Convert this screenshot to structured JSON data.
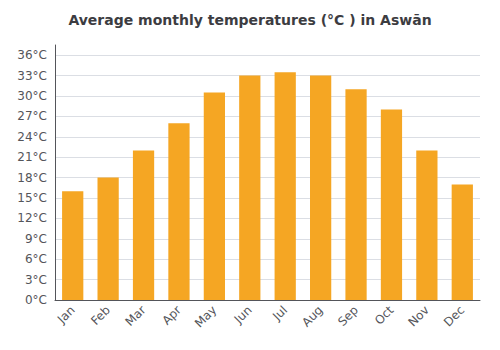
{
  "chart_data": {
    "type": "bar",
    "title": "Average monthly temperatures (°C ) in Aswān",
    "categories": [
      "Jan",
      "Feb",
      "Mar",
      "Apr",
      "May",
      "Jun",
      "Jul",
      "Aug",
      "Sep",
      "Oct",
      "Nov",
      "Dec"
    ],
    "values": [
      16,
      18,
      22,
      26,
      30.5,
      33,
      33.5,
      33,
      31,
      28,
      22,
      17
    ],
    "color": "#F5A623",
    "ylim": [
      0,
      37.5
    ],
    "yticks": [
      {
        "value": 0,
        "label": "0°C"
      },
      {
        "value": 3,
        "label": "3°C"
      },
      {
        "value": 6,
        "label": "6°C"
      },
      {
        "value": 9,
        "label": "9°C"
      },
      {
        "value": 12,
        "label": "12°C"
      },
      {
        "value": 15,
        "label": "15°C"
      },
      {
        "value": 18,
        "label": "18°C"
      },
      {
        "value": 21,
        "label": "21°C"
      },
      {
        "value": 24,
        "label": "24°C"
      },
      {
        "value": 27,
        "label": "27°C"
      },
      {
        "value": 30,
        "label": "30°C"
      },
      {
        "value": 33,
        "label": "33°C"
      },
      {
        "value": 36,
        "label": "36°C"
      }
    ],
    "grid": true
  }
}
